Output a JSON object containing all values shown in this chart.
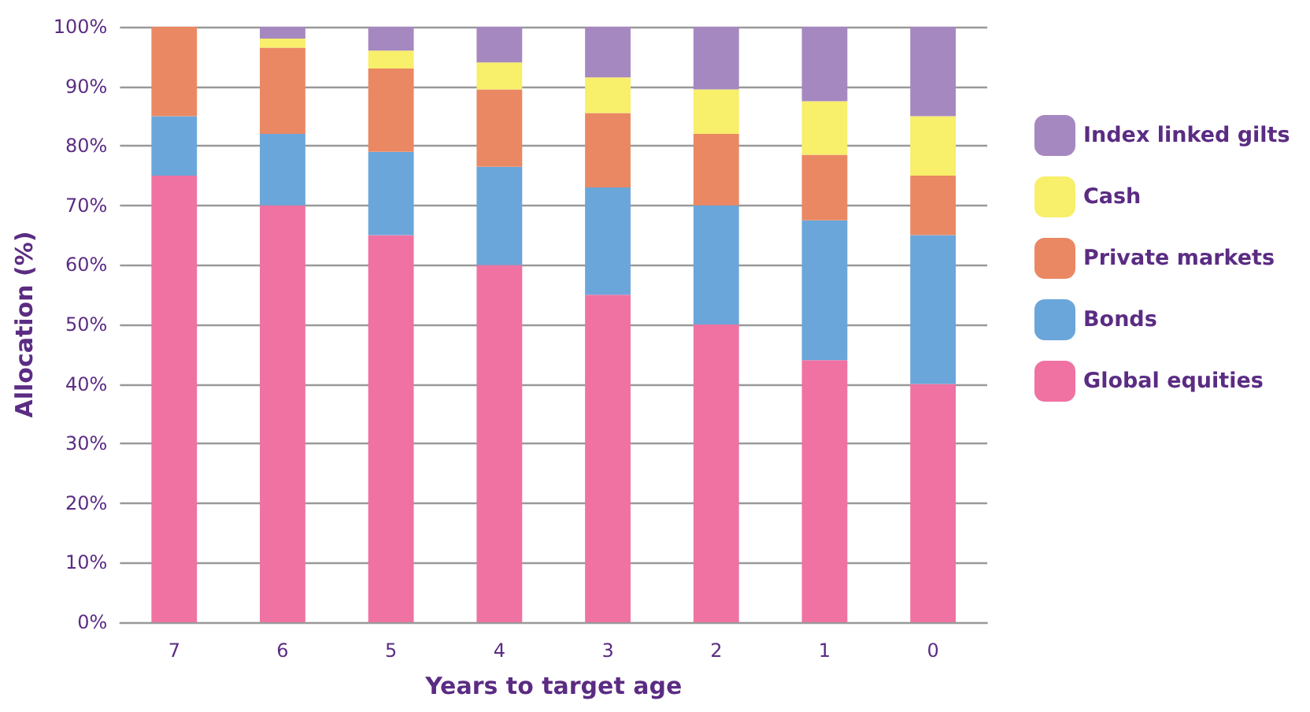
{
  "chart_data": {
    "type": "bar",
    "stacked": true,
    "xlabel": "Years to target age",
    "ylabel": "Allocation (%)",
    "categories": [
      "7",
      "6",
      "5",
      "4",
      "3",
      "2",
      "1",
      "0"
    ],
    "series": [
      {
        "name": "Global equities",
        "color": "#ef72a2",
        "values": [
          75,
          70,
          65,
          60,
          55,
          50,
          44,
          40
        ]
      },
      {
        "name": "Bonds",
        "color": "#6aa6da",
        "values": [
          10,
          12,
          14,
          16.5,
          18,
          20,
          23.5,
          25
        ]
      },
      {
        "name": "Private markets",
        "color": "#ea8863",
        "values": [
          15,
          14.5,
          14,
          13,
          12.5,
          12,
          11,
          10
        ]
      },
      {
        "name": "Cash",
        "color": "#f8ef6a",
        "values": [
          0,
          1.5,
          3,
          4.5,
          6,
          7.5,
          9,
          10
        ]
      },
      {
        "name": "Index linked gilts",
        "color": "#a688c0",
        "values": [
          0,
          2,
          4,
          6,
          8.5,
          10.5,
          12.5,
          15
        ]
      }
    ],
    "ylim": [
      0,
      100
    ],
    "yticks": [
      {
        "value": 0,
        "label": "0%"
      },
      {
        "value": 10,
        "label": "10%"
      },
      {
        "value": 20,
        "label": "20%"
      },
      {
        "value": 30,
        "label": "30%"
      },
      {
        "value": 40,
        "label": "40%"
      },
      {
        "value": 50,
        "label": "50%"
      },
      {
        "value": 60,
        "label": "60%"
      },
      {
        "value": 70,
        "label": "70%"
      },
      {
        "value": 80,
        "label": "80%"
      },
      {
        "value": 90,
        "label": "90%"
      },
      {
        "value": 100,
        "label": "100%"
      }
    ],
    "grid": "y",
    "legend": "right"
  }
}
